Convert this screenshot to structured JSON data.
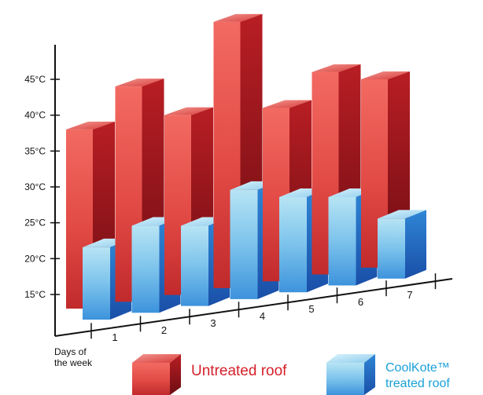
{
  "chart_data": {
    "type": "bar",
    "title": "",
    "xlabel": "Days of the week",
    "xlabel_lines": [
      "Days of",
      "the week"
    ],
    "ylabel": "",
    "categories": [
      "1",
      "2",
      "3",
      "4",
      "5",
      "6",
      "7"
    ],
    "y_ticks": [
      "15°C",
      "20°C",
      "25°C",
      "30°C",
      "35°C",
      "40°C",
      "45°C"
    ],
    "ylim": [
      13,
      53
    ],
    "grid": false,
    "legend_position": "bottom",
    "series": [
      {
        "name": "Untreated roof",
        "values": [
          38,
          44,
          40,
          53,
          41,
          46,
          45
        ],
        "color": "#d8282e"
      },
      {
        "name": "CoolKote™ treated roof",
        "values": [
          23,
          26,
          26,
          31,
          30,
          30,
          27
        ],
        "color": "#2e8fdb"
      }
    ],
    "legend": {
      "untreated_label": "Untreated roof",
      "treated_label_line1": "CoolKote™",
      "treated_label_line2": "treated roof"
    }
  }
}
